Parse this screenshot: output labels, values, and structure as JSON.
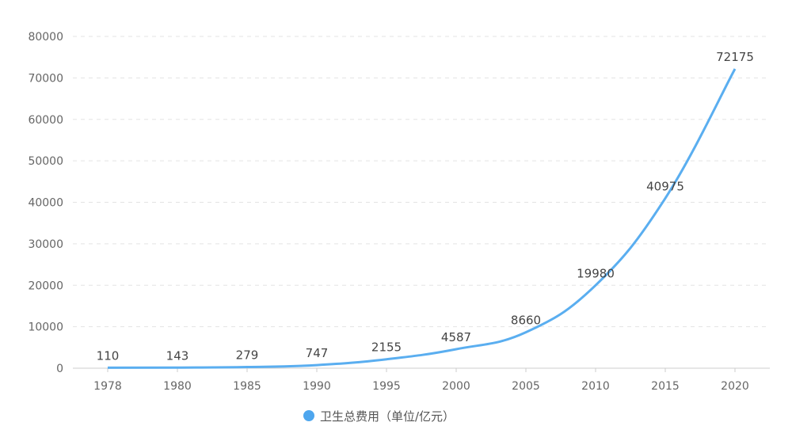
{
  "chart_data": {
    "type": "line",
    "title": "",
    "xlabel": "",
    "ylabel": "",
    "categories": [
      "1978",
      "1980",
      "1985",
      "1990",
      "1995",
      "2000",
      "2005",
      "2010",
      "2015",
      "2020"
    ],
    "series": [
      {
        "name": "卫生总费用（单位/亿元）",
        "values": [
          110,
          143,
          279,
          747,
          2155,
          4587,
          8660,
          19980,
          40975,
          72175
        ],
        "color": "#5aaef0"
      }
    ],
    "ylim": [
      0,
      80000
    ],
    "yticks": [
      0,
      10000,
      20000,
      30000,
      40000,
      50000,
      60000,
      70000,
      80000
    ],
    "grid": "horizontal-dashed",
    "smooth": true,
    "data_labels": true,
    "legend": "bottom",
    "legend_marker_color": "#4ea6ee"
  }
}
